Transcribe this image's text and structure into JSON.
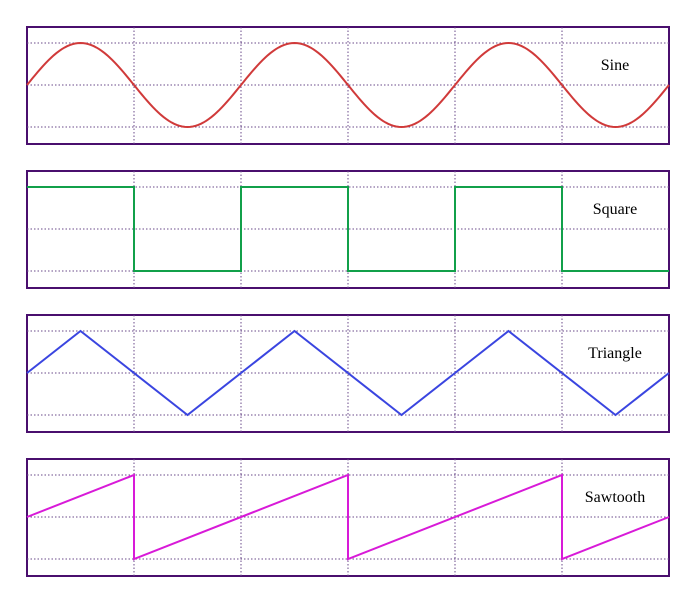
{
  "panels": [
    {
      "id": "sine",
      "label": "Sine",
      "color": "#d03a3a",
      "shape": "sine",
      "cycles": 3
    },
    {
      "id": "square",
      "label": "Square",
      "color": "#11a04a",
      "shape": "square",
      "cycles": 3
    },
    {
      "id": "triangle",
      "label": "Triangle",
      "color": "#3a45e0",
      "shape": "triangle",
      "cycles": 3
    },
    {
      "id": "sawtooth",
      "label": "Sawtooth",
      "color": "#d81ad8",
      "shape": "sawtooth",
      "cycles": 3
    }
  ],
  "colors": {
    "frame": "#4a0f6e",
    "grid": "#6a4a8a",
    "background": "#ffffff"
  }
}
